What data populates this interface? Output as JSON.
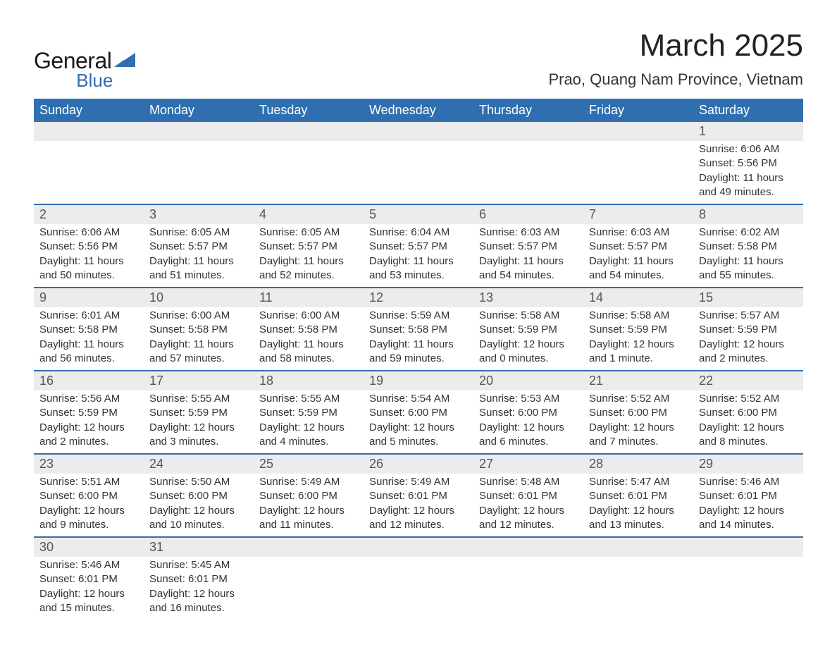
{
  "brand": {
    "name1": "General",
    "name2": "Blue",
    "accent_color": "#2f6fb0"
  },
  "title": "March 2025",
  "location": "Prao, Quang Nam Province, Vietnam",
  "colors": {
    "header_bg": "#2f6fb0",
    "header_text": "#ffffff",
    "daynum_bg": "#ececec",
    "row_border": "#2f6fb0",
    "body_text": "#333333"
  },
  "day_headers": [
    "Sunday",
    "Monday",
    "Tuesday",
    "Wednesday",
    "Thursday",
    "Friday",
    "Saturday"
  ],
  "labels": {
    "sunrise": "Sunrise:",
    "sunset": "Sunset:",
    "daylight": "Daylight:"
  },
  "weeks": [
    [
      null,
      null,
      null,
      null,
      null,
      null,
      {
        "n": "1",
        "sunrise": "6:06 AM",
        "sunset": "5:56 PM",
        "daylight": "11 hours and 49 minutes."
      }
    ],
    [
      {
        "n": "2",
        "sunrise": "6:06 AM",
        "sunset": "5:56 PM",
        "daylight": "11 hours and 50 minutes."
      },
      {
        "n": "3",
        "sunrise": "6:05 AM",
        "sunset": "5:57 PM",
        "daylight": "11 hours and 51 minutes."
      },
      {
        "n": "4",
        "sunrise": "6:05 AM",
        "sunset": "5:57 PM",
        "daylight": "11 hours and 52 minutes."
      },
      {
        "n": "5",
        "sunrise": "6:04 AM",
        "sunset": "5:57 PM",
        "daylight": "11 hours and 53 minutes."
      },
      {
        "n": "6",
        "sunrise": "6:03 AM",
        "sunset": "5:57 PM",
        "daylight": "11 hours and 54 minutes."
      },
      {
        "n": "7",
        "sunrise": "6:03 AM",
        "sunset": "5:57 PM",
        "daylight": "11 hours and 54 minutes."
      },
      {
        "n": "8",
        "sunrise": "6:02 AM",
        "sunset": "5:58 PM",
        "daylight": "11 hours and 55 minutes."
      }
    ],
    [
      {
        "n": "9",
        "sunrise": "6:01 AM",
        "sunset": "5:58 PM",
        "daylight": "11 hours and 56 minutes."
      },
      {
        "n": "10",
        "sunrise": "6:00 AM",
        "sunset": "5:58 PM",
        "daylight": "11 hours and 57 minutes."
      },
      {
        "n": "11",
        "sunrise": "6:00 AM",
        "sunset": "5:58 PM",
        "daylight": "11 hours and 58 minutes."
      },
      {
        "n": "12",
        "sunrise": "5:59 AM",
        "sunset": "5:58 PM",
        "daylight": "11 hours and 59 minutes."
      },
      {
        "n": "13",
        "sunrise": "5:58 AM",
        "sunset": "5:59 PM",
        "daylight": "12 hours and 0 minutes."
      },
      {
        "n": "14",
        "sunrise": "5:58 AM",
        "sunset": "5:59 PM",
        "daylight": "12 hours and 1 minute."
      },
      {
        "n": "15",
        "sunrise": "5:57 AM",
        "sunset": "5:59 PM",
        "daylight": "12 hours and 2 minutes."
      }
    ],
    [
      {
        "n": "16",
        "sunrise": "5:56 AM",
        "sunset": "5:59 PM",
        "daylight": "12 hours and 2 minutes."
      },
      {
        "n": "17",
        "sunrise": "5:55 AM",
        "sunset": "5:59 PM",
        "daylight": "12 hours and 3 minutes."
      },
      {
        "n": "18",
        "sunrise": "5:55 AM",
        "sunset": "5:59 PM",
        "daylight": "12 hours and 4 minutes."
      },
      {
        "n": "19",
        "sunrise": "5:54 AM",
        "sunset": "6:00 PM",
        "daylight": "12 hours and 5 minutes."
      },
      {
        "n": "20",
        "sunrise": "5:53 AM",
        "sunset": "6:00 PM",
        "daylight": "12 hours and 6 minutes."
      },
      {
        "n": "21",
        "sunrise": "5:52 AM",
        "sunset": "6:00 PM",
        "daylight": "12 hours and 7 minutes."
      },
      {
        "n": "22",
        "sunrise": "5:52 AM",
        "sunset": "6:00 PM",
        "daylight": "12 hours and 8 minutes."
      }
    ],
    [
      {
        "n": "23",
        "sunrise": "5:51 AM",
        "sunset": "6:00 PM",
        "daylight": "12 hours and 9 minutes."
      },
      {
        "n": "24",
        "sunrise": "5:50 AM",
        "sunset": "6:00 PM",
        "daylight": "12 hours and 10 minutes."
      },
      {
        "n": "25",
        "sunrise": "5:49 AM",
        "sunset": "6:00 PM",
        "daylight": "12 hours and 11 minutes."
      },
      {
        "n": "26",
        "sunrise": "5:49 AM",
        "sunset": "6:01 PM",
        "daylight": "12 hours and 12 minutes."
      },
      {
        "n": "27",
        "sunrise": "5:48 AM",
        "sunset": "6:01 PM",
        "daylight": "12 hours and 12 minutes."
      },
      {
        "n": "28",
        "sunrise": "5:47 AM",
        "sunset": "6:01 PM",
        "daylight": "12 hours and 13 minutes."
      },
      {
        "n": "29",
        "sunrise": "5:46 AM",
        "sunset": "6:01 PM",
        "daylight": "12 hours and 14 minutes."
      }
    ],
    [
      {
        "n": "30",
        "sunrise": "5:46 AM",
        "sunset": "6:01 PM",
        "daylight": "12 hours and 15 minutes."
      },
      {
        "n": "31",
        "sunrise": "5:45 AM",
        "sunset": "6:01 PM",
        "daylight": "12 hours and 16 minutes."
      },
      null,
      null,
      null,
      null,
      null
    ]
  ]
}
